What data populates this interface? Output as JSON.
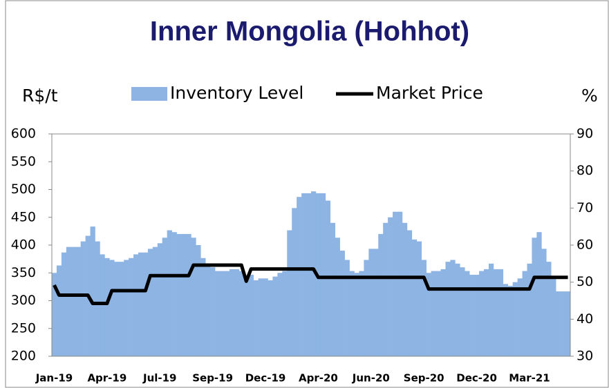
{
  "chart_data": {
    "type": "bar",
    "title": "Inner Mongolia (Hohhot)",
    "ylabel": "R$/t",
    "y2label": "%",
    "categories": [
      "Jan-19",
      null,
      null,
      null,
      null,
      null,
      null,
      null,
      null,
      null,
      null,
      "Apr-19",
      null,
      null,
      null,
      null,
      null,
      null,
      null,
      null,
      null,
      null,
      "Jul-19",
      null,
      null,
      null,
      null,
      null,
      null,
      null,
      null,
      null,
      null,
      "Sep-19",
      null,
      null,
      null,
      null,
      null,
      null,
      null,
      null,
      null,
      null,
      "Dec-19",
      null,
      null,
      null,
      null,
      null,
      null,
      null,
      null,
      null,
      null,
      "Apr-20",
      null,
      null,
      null,
      null,
      null,
      null,
      null,
      null,
      null,
      null,
      "Jun-20",
      null,
      null,
      null,
      null,
      null,
      null,
      null,
      null,
      null,
      null,
      "Sep-20",
      null,
      null,
      null,
      null,
      null,
      null,
      null,
      null,
      null,
      null,
      "Dec-20",
      null,
      null,
      null,
      null,
      null,
      null,
      null,
      null,
      null,
      null,
      "Mar-21",
      null,
      null,
      null,
      null,
      null,
      null,
      null,
      null
    ],
    "series": [
      {
        "name": "Inventory Level",
        "type": "bar",
        "axis": "y2",
        "color": "#8db4e2",
        "values": [
          52.5,
          54.5,
          58,
          59.5,
          59.5,
          59.5,
          61,
          62.5,
          65,
          61,
          57.5,
          56.5,
          56,
          55.5,
          55.5,
          56,
          56.5,
          57.5,
          58,
          58,
          59,
          59.5,
          60.5,
          62,
          64,
          63.5,
          63,
          63,
          63,
          62,
          60,
          56.5,
          55,
          54,
          53,
          53,
          53,
          53.5,
          53.5,
          53,
          51,
          52,
          50.5,
          51,
          51,
          50.5,
          51.5,
          52.5,
          53,
          64,
          70,
          73,
          74,
          74,
          74.5,
          74,
          74,
          72,
          66,
          62,
          58.5,
          56,
          53,
          52.5,
          53,
          56,
          59,
          59,
          63,
          66,
          67.5,
          69,
          69,
          66,
          64,
          61.5,
          61,
          56,
          52.5,
          53,
          53,
          53.5,
          55.5,
          56,
          55,
          54,
          53,
          52,
          52,
          53,
          53.5,
          55,
          53.5,
          53.5,
          49.5,
          49,
          50,
          51,
          53,
          55,
          62,
          63.5,
          59,
          55.5,
          51,
          47.5,
          47.5,
          47.5
        ]
      },
      {
        "name": "Market Price",
        "type": "line",
        "color": "#000000",
        "values": [
          328,
          310,
          310,
          310,
          310,
          310,
          310,
          310,
          295,
          295,
          295,
          295,
          318,
          318,
          318,
          318,
          318,
          318,
          318,
          318,
          345,
          345,
          345,
          345,
          345,
          345,
          345,
          345,
          345,
          364,
          364,
          364,
          364,
          364,
          364,
          364,
          364,
          364,
          364,
          364,
          335,
          357,
          357,
          357,
          357,
          357,
          357,
          357,
          357,
          357,
          357,
          357,
          357,
          357,
          357,
          342,
          342,
          342,
          342,
          342,
          342,
          342,
          342,
          342,
          342,
          342,
          342,
          342,
          342,
          342,
          342,
          342,
          342,
          342,
          342,
          342,
          342,
          342,
          321,
          321,
          321,
          321,
          321,
          321,
          321,
          321,
          321,
          321,
          321,
          321,
          321,
          321,
          321,
          321,
          321,
          321,
          321,
          321,
          321,
          321,
          342,
          342,
          342,
          342,
          342,
          342,
          342,
          342
        ]
      }
    ],
    "ylim": [
      200,
      600
    ],
    "yticks": [
      200,
      250,
      300,
      350,
      400,
      450,
      500,
      550,
      600
    ],
    "y2lim": [
      30,
      90
    ],
    "y2ticks": [
      30,
      40,
      50,
      60,
      70,
      80,
      90
    ],
    "grid": false
  }
}
